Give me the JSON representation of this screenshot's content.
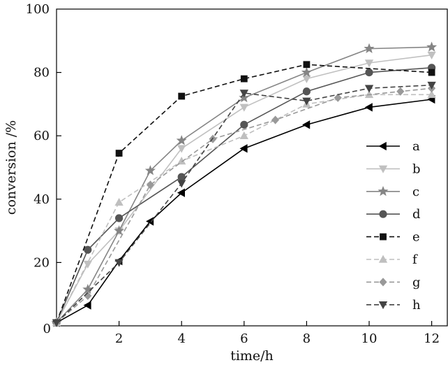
{
  "chart_data": {
    "type": "line",
    "xlabel": "time/h",
    "ylabel": "conversion /%",
    "xlim": [
      0,
      12.5
    ],
    "ylim": [
      0,
      100
    ],
    "xticks": [
      2,
      4,
      6,
      8,
      10,
      12
    ],
    "yticks": [
      0,
      20,
      40,
      60,
      80,
      100
    ],
    "xtick_labels": [
      "2",
      "4",
      "6",
      "8",
      "10",
      "12"
    ],
    "ytick_labels": [
      "0",
      "20",
      "40",
      "60",
      "80",
      "100"
    ],
    "grid": false,
    "legend_position": "right",
    "series": [
      {
        "name": "a",
        "marker": "triangle-left",
        "color": "#000000",
        "dash": false,
        "x": [
          0,
          1,
          2,
          3,
          4,
          6,
          8,
          10,
          12
        ],
        "y": [
          1,
          6.5,
          20.5,
          33,
          42,
          56,
          63.5,
          69,
          71.5
        ]
      },
      {
        "name": "b",
        "marker": "triangle-down",
        "color": "#c0c0c0",
        "dash": false,
        "x": [
          0,
          1,
          2,
          4,
          6,
          8,
          10,
          12
        ],
        "y": [
          1,
          19.5,
          30,
          56,
          69,
          78,
          83,
          85.5
        ]
      },
      {
        "name": "c",
        "marker": "star",
        "color": "#858585",
        "dash": false,
        "x": [
          0,
          1,
          2,
          3,
          4,
          6,
          8,
          10,
          12
        ],
        "y": [
          1,
          11.5,
          30,
          49,
          58.5,
          72,
          80,
          87.5,
          88
        ]
      },
      {
        "name": "d",
        "marker": "circle",
        "color": "#555555",
        "dash": false,
        "x": [
          0,
          1,
          2,
          4,
          6,
          8,
          10,
          12
        ],
        "y": [
          1,
          24,
          34,
          47,
          63.5,
          74,
          80,
          81.5
        ]
      },
      {
        "name": "e",
        "marker": "square",
        "color": "#111111",
        "dash": true,
        "x": [
          0,
          2,
          4,
          6,
          8,
          12
        ],
        "y": [
          1,
          54.5,
          72.5,
          78,
          82.5,
          80
        ]
      },
      {
        "name": "f",
        "marker": "triangle-up",
        "color": "#bfbfbf",
        "dash": true,
        "x": [
          0,
          2,
          4,
          6,
          8,
          10,
          12
        ],
        "y": [
          1,
          39,
          52,
          60,
          70,
          73,
          73
        ]
      },
      {
        "name": "g",
        "marker": "diamond",
        "color": "#999999",
        "dash": true,
        "x": [
          0,
          1,
          3,
          5,
          7,
          9,
          11,
          12
        ],
        "y": [
          1,
          9.5,
          44.5,
          59,
          65,
          72,
          74,
          75
        ]
      },
      {
        "name": "h",
        "marker": "triangle-down",
        "color": "#444444",
        "dash": true,
        "x": [
          0,
          2,
          4,
          6,
          8,
          10,
          12
        ],
        "y": [
          1,
          20,
          45,
          73.5,
          71,
          75,
          76
        ]
      }
    ]
  }
}
